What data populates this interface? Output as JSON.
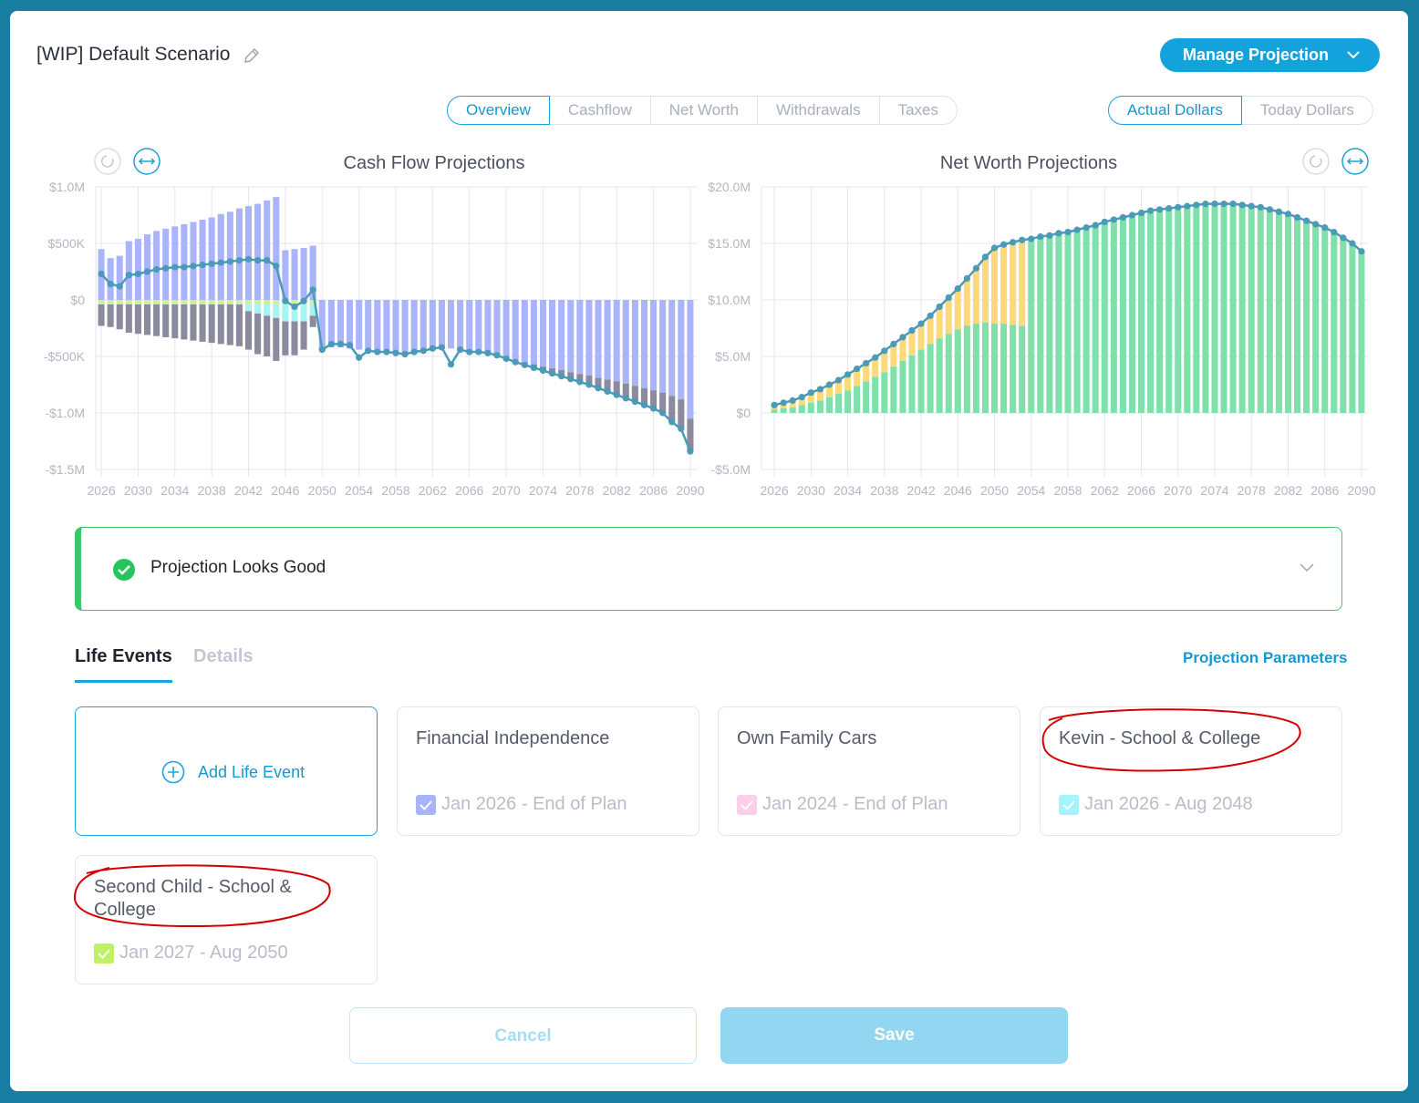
{
  "header": {
    "title": "[WIP] Default Scenario",
    "menu": "Manage Projection"
  },
  "view_tabs": {
    "items": [
      "Overview",
      "Cashflow",
      "Net Worth",
      "Withdrawals",
      "Taxes"
    ],
    "active": 0
  },
  "dollar_tabs": {
    "items": [
      "Actual Dollars",
      "Today Dollars"
    ],
    "active": 0
  },
  "chart_data": [
    {
      "type": "bar",
      "title": "Cash Flow Projections",
      "x": [
        2026,
        2027,
        2028,
        2029,
        2030,
        2031,
        2032,
        2033,
        2034,
        2035,
        2036,
        2037,
        2038,
        2039,
        2040,
        2041,
        2042,
        2043,
        2044,
        2045,
        2046,
        2047,
        2048,
        2049,
        2050,
        2051,
        2052,
        2053,
        2054,
        2055,
        2056,
        2057,
        2058,
        2059,
        2060,
        2061,
        2062,
        2063,
        2064,
        2065,
        2066,
        2067,
        2068,
        2069,
        2070,
        2071,
        2072,
        2073,
        2074,
        2075,
        2076,
        2077,
        2078,
        2079,
        2080,
        2081,
        2082,
        2083,
        2084,
        2085,
        2086,
        2087,
        2088,
        2089,
        2090
      ],
      "xlim": [
        2025.4,
        2090.8
      ],
      "xticks": [
        2026,
        2030,
        2034,
        2038,
        2042,
        2046,
        2050,
        2054,
        2058,
        2062,
        2066,
        2070,
        2074,
        2078,
        2082,
        2086,
        2090
      ],
      "ylim": [
        -1500000,
        1000000
      ],
      "yticks": [
        {
          "value": 1000000,
          "label": "$1.0M"
        },
        {
          "value": 500000,
          "label": "$500K"
        },
        {
          "value": 0,
          "label": "$0"
        },
        {
          "value": -500000,
          "label": "-$500K"
        },
        {
          "value": -1000000,
          "label": "-$1.0M"
        },
        {
          "value": -1500000,
          "label": "-$1.5M"
        }
      ],
      "grid": true,
      "series": [
        {
          "color": "#aab4fb",
          "values": [
            450000,
            370000,
            390000,
            520000,
            540000,
            580000,
            610000,
            630000,
            650000,
            670000,
            690000,
            710000,
            730000,
            760000,
            780000,
            810000,
            830000,
            850000,
            880000,
            910000,
            440000,
            450000,
            460000,
            480000,
            -450000,
            -420000,
            -420000,
            -430000,
            -440000,
            -450000,
            -460000,
            -460000,
            -470000,
            -470000,
            -460000,
            -450000,
            -440000,
            -430000,
            -430000,
            -450000,
            -470000,
            -470000,
            -480000,
            -500000,
            -520000,
            -540000,
            -555000,
            -570000,
            -590000,
            -605000,
            -620000,
            -640000,
            -655000,
            -670000,
            -690000,
            -705000,
            -720000,
            -740000,
            -760000,
            -780000,
            -800000,
            -820000,
            -850000,
            -880000,
            -1050000
          ]
        },
        {
          "color": "#cdf28f",
          "values": [
            -40000,
            -40000,
            -40000,
            -40000,
            -40000,
            -40000,
            -40000,
            -40000,
            -40000,
            -40000,
            -40000,
            -40000,
            -40000,
            -40000,
            -40000,
            -40000,
            -40000,
            -40000,
            -40000,
            -40000,
            -40000,
            -40000,
            -40000,
            -40000,
            0,
            0,
            0,
            0,
            0,
            0,
            0,
            0,
            0,
            0,
            0,
            0,
            0,
            0,
            0,
            0,
            0,
            0,
            0,
            0,
            0,
            0,
            0,
            0,
            0,
            0,
            0,
            0,
            0,
            0,
            0,
            0,
            0,
            0,
            0,
            0,
            0,
            0,
            0,
            0,
            0
          ]
        },
        {
          "color": "#a5f5f0",
          "values": [
            0,
            0,
            0,
            0,
            0,
            0,
            0,
            0,
            0,
            0,
            0,
            0,
            0,
            0,
            0,
            0,
            -60000,
            -80000,
            -100000,
            -120000,
            -150000,
            -150000,
            -150000,
            -100000,
            0,
            0,
            0,
            0,
            0,
            0,
            0,
            0,
            0,
            0,
            0,
            0,
            0,
            0,
            0,
            0,
            0,
            0,
            0,
            0,
            0,
            0,
            0,
            0,
            0,
            0,
            0,
            0,
            0,
            0,
            0,
            0,
            0,
            0,
            0,
            0,
            0,
            0,
            0,
            0,
            0
          ]
        },
        {
          "color": "#8b8b9d",
          "values": [
            -190000,
            -200000,
            -220000,
            -250000,
            -260000,
            -270000,
            -280000,
            -290000,
            -300000,
            -310000,
            -320000,
            -330000,
            -340000,
            -350000,
            -360000,
            -370000,
            -340000,
            -360000,
            -360000,
            -380000,
            -300000,
            -300000,
            -250000,
            -100000,
            0,
            0,
            0,
            0,
            0,
            0,
            0,
            0,
            0,
            0,
            0,
            0,
            0,
            0,
            0,
            0,
            0,
            0,
            0,
            0,
            0,
            -10000,
            -20000,
            -30000,
            -35000,
            -45000,
            -55000,
            -60000,
            -70000,
            -80000,
            -90000,
            -105000,
            -120000,
            -130000,
            -140000,
            -150000,
            -160000,
            -180000,
            -230000,
            -260000,
            -290000
          ]
        },
        {
          "type": "line",
          "color": "#4a9ab8",
          "values": [
            230000,
            140000,
            120000,
            220000,
            230000,
            250000,
            270000,
            280000,
            290000,
            290000,
            300000,
            310000,
            320000,
            330000,
            340000,
            350000,
            360000,
            350000,
            350000,
            300000,
            -10000,
            -60000,
            -10000,
            90000,
            -440000,
            -390000,
            -390000,
            -400000,
            -510000,
            -450000,
            -460000,
            -460000,
            -470000,
            -480000,
            -460000,
            -450000,
            -430000,
            -420000,
            -570000,
            -440000,
            -460000,
            -460000,
            -470000,
            -490000,
            -520000,
            -550000,
            -575000,
            -600000,
            -625000,
            -650000,
            -675000,
            -700000,
            -725000,
            -750000,
            -780000,
            -810000,
            -840000,
            -870000,
            -900000,
            -930000,
            -960000,
            -1000000,
            -1080000,
            -1140000,
            -1340000
          ]
        }
      ]
    },
    {
      "type": "bar",
      "title": "Net Worth Projections",
      "x": [
        2026,
        2027,
        2028,
        2029,
        2030,
        2031,
        2032,
        2033,
        2034,
        2035,
        2036,
        2037,
        2038,
        2039,
        2040,
        2041,
        2042,
        2043,
        2044,
        2045,
        2046,
        2047,
        2048,
        2049,
        2050,
        2051,
        2052,
        2053,
        2054,
        2055,
        2056,
        2057,
        2058,
        2059,
        2060,
        2061,
        2062,
        2063,
        2064,
        2065,
        2066,
        2067,
        2068,
        2069,
        2070,
        2071,
        2072,
        2073,
        2074,
        2075,
        2076,
        2077,
        2078,
        2079,
        2080,
        2081,
        2082,
        2083,
        2084,
        2085,
        2086,
        2087,
        2088,
        2089,
        2090
      ],
      "xlim": [
        2024.6,
        2090.7
      ],
      "xticks": [
        2026,
        2030,
        2034,
        2038,
        2042,
        2046,
        2050,
        2054,
        2058,
        2062,
        2066,
        2070,
        2074,
        2078,
        2082,
        2086,
        2090
      ],
      "ylim": [
        -5000000,
        20000000
      ],
      "yticks": [
        {
          "value": 20000000,
          "label": "$20.0M"
        },
        {
          "value": 15000000,
          "label": "$15.0M"
        },
        {
          "value": 10000000,
          "label": "$10.0M"
        },
        {
          "value": 5000000,
          "label": "$5.0M"
        },
        {
          "value": 0,
          "label": "$0"
        },
        {
          "value": -5000000,
          "label": "-$5.0M"
        }
      ],
      "grid": true,
      "series": [
        {
          "color": "#80e0aa",
          "values": [
            300000,
            400000,
            500000,
            700000,
            900000,
            1100000,
            1400000,
            1700000,
            2000000,
            2400000,
            2800000,
            3200000,
            3600000,
            4100000,
            4600000,
            5100000,
            5600000,
            6100000,
            6600000,
            7000000,
            7400000,
            7700000,
            7900000,
            8000000,
            7900000,
            7900000,
            7800000,
            7700000,
            15400000,
            15600000,
            15700000,
            15900000,
            16000000,
            16200000,
            16400000,
            16600000,
            16900000,
            17100000,
            17300000,
            17500000,
            17700000,
            17900000,
            18000000,
            18100000,
            18200000,
            18300000,
            18400000,
            18500000,
            18500000,
            18500000,
            18500000,
            18400000,
            18300000,
            18200000,
            18000000,
            17800000,
            17600000,
            17300000,
            17000000,
            16700000,
            16400000,
            16000000,
            15500000,
            15000000,
            14300000
          ]
        },
        {
          "color": "#fdd97a",
          "values": [
            400000,
            500000,
            600000,
            700000,
            900000,
            1000000,
            1100000,
            1200000,
            1400000,
            1500000,
            1600000,
            1700000,
            1900000,
            2000000,
            2100000,
            2200000,
            2300000,
            2500000,
            2800000,
            3200000,
            3600000,
            4200000,
            4900000,
            5800000,
            6700000,
            7000000,
            7300000,
            7600000,
            0,
            0,
            0,
            0,
            0,
            0,
            0,
            0,
            0,
            0,
            0,
            0,
            0,
            0,
            0,
            0,
            0,
            0,
            0,
            0,
            0,
            0,
            0,
            0,
            0,
            0,
            0,
            0,
            0,
            0,
            0,
            0,
            0,
            0,
            0,
            0,
            0
          ]
        },
        {
          "type": "line",
          "color": "#4a9ab8",
          "values": [
            700000,
            900000,
            1100000,
            1400000,
            1800000,
            2100000,
            2500000,
            2900000,
            3400000,
            3900000,
            4400000,
            4900000,
            5500000,
            6100000,
            6700000,
            7300000,
            7900000,
            8600000,
            9400000,
            10200000,
            11000000,
            11900000,
            12800000,
            13800000,
            14600000,
            14900000,
            15100000,
            15300000,
            15400000,
            15600000,
            15700000,
            15900000,
            16000000,
            16200000,
            16400000,
            16600000,
            16900000,
            17100000,
            17300000,
            17500000,
            17700000,
            17900000,
            18000000,
            18100000,
            18200000,
            18300000,
            18400000,
            18500000,
            18500000,
            18500000,
            18500000,
            18400000,
            18300000,
            18200000,
            18000000,
            17800000,
            17600000,
            17300000,
            17000000,
            16700000,
            16400000,
            16000000,
            15500000,
            15000000,
            14300000
          ]
        }
      ]
    }
  ],
  "status": "Projection Looks Good",
  "section_tabs": {
    "items": [
      "Life Events",
      "Details"
    ],
    "active": 0
  },
  "params_link": "Projection Parameters",
  "add_event": "Add Life Event",
  "events": [
    {
      "title": "Financial Independence",
      "dates": "Jan 2026 - End of Plan",
      "color": "#a5b4fc"
    },
    {
      "title": "Own Family Cars",
      "dates": "Jan 2024 - End of Plan",
      "color": "#fbcfe8"
    },
    {
      "title": "Kevin - School & College",
      "dates": "Jan 2026 - Aug 2048",
      "color": "#a5f3fc"
    },
    {
      "title": "Second Child - School & College",
      "dates": "Jan 2027 - Aug 2050",
      "color": "#bef264"
    }
  ],
  "buttons": {
    "cancel": "Cancel",
    "save": "Save"
  }
}
